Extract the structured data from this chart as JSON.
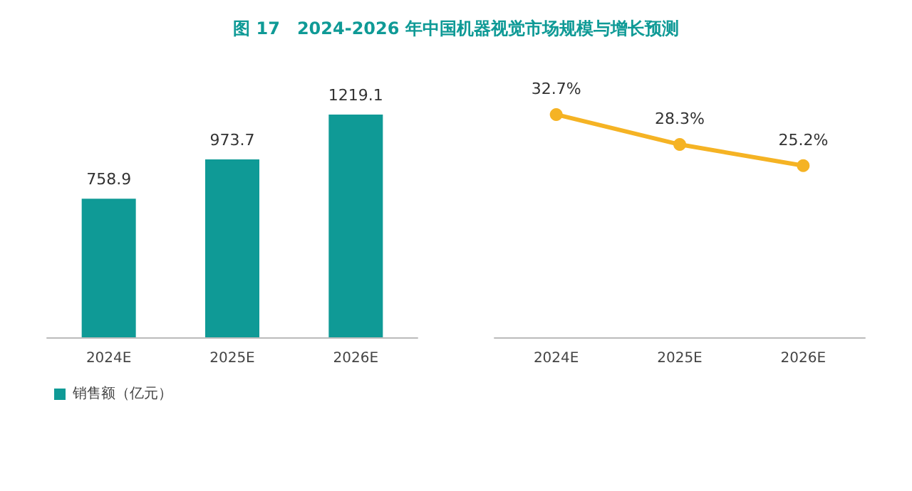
{
  "chart_data": [
    {
      "type": "bar",
      "title": "图 17　2024-2026 年中国机器视觉市场规模与增长预测",
      "categories": [
        "2024E",
        "2025E",
        "2026E"
      ],
      "series": [
        {
          "name": "销售额（亿元）",
          "color": "#0f9a96",
          "values": [
            758.9,
            973.7,
            1219.1
          ]
        }
      ],
      "tick_labels": "x",
      "data_labels": true,
      "legend": "bottom left",
      "grid": false
    },
    {
      "type": "line",
      "categories": [
        "2024E",
        "2025E",
        "2026E"
      ],
      "series": [
        {
          "color": "#f5b324",
          "values": [
            32.7,
            28.3,
            25.2
          ],
          "value_labels": [
            "32.7%",
            "28.3%",
            "25.2%"
          ]
        }
      ],
      "tick_labels": "x",
      "marker": "circle",
      "line_style": "solid",
      "grid": false,
      "legend": false
    }
  ]
}
